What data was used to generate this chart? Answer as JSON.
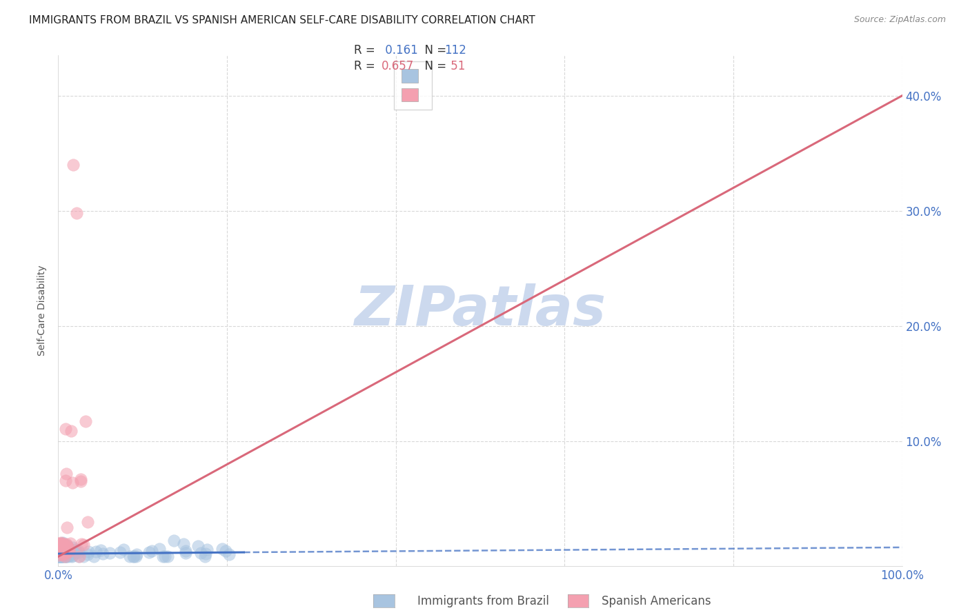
{
  "title": "IMMIGRANTS FROM BRAZIL VS SPANISH AMERICAN SELF-CARE DISABILITY CORRELATION CHART",
  "source": "Source: ZipAtlas.com",
  "ylabel": "Self-Care Disability",
  "xlim": [
    0,
    1.0
  ],
  "ylim": [
    -0.008,
    0.435
  ],
  "brazil_R": 0.161,
  "brazil_N": 112,
  "spanish_R": 0.657,
  "spanish_N": 51,
  "brazil_color": "#a8c4e0",
  "spanish_color": "#f4a0b0",
  "brazil_trend_color": "#4472c4",
  "spanish_trend_color": "#d9687a",
  "brazil_trend_intercept": 0.0025,
  "brazil_trend_slope": 0.0055,
  "spanish_trend_intercept": 0.0,
  "spanish_trend_slope": 0.4,
  "watermark_color": "#ccd9ee",
  "background_color": "#ffffff",
  "title_fontsize": 11,
  "legend_label_brazil": "Immigrants from Brazil",
  "legend_label_spanish": "Spanish Americans",
  "tick_color": "#4472c4",
  "label_color": "#555555",
  "grid_color": "#d8d8d8"
}
